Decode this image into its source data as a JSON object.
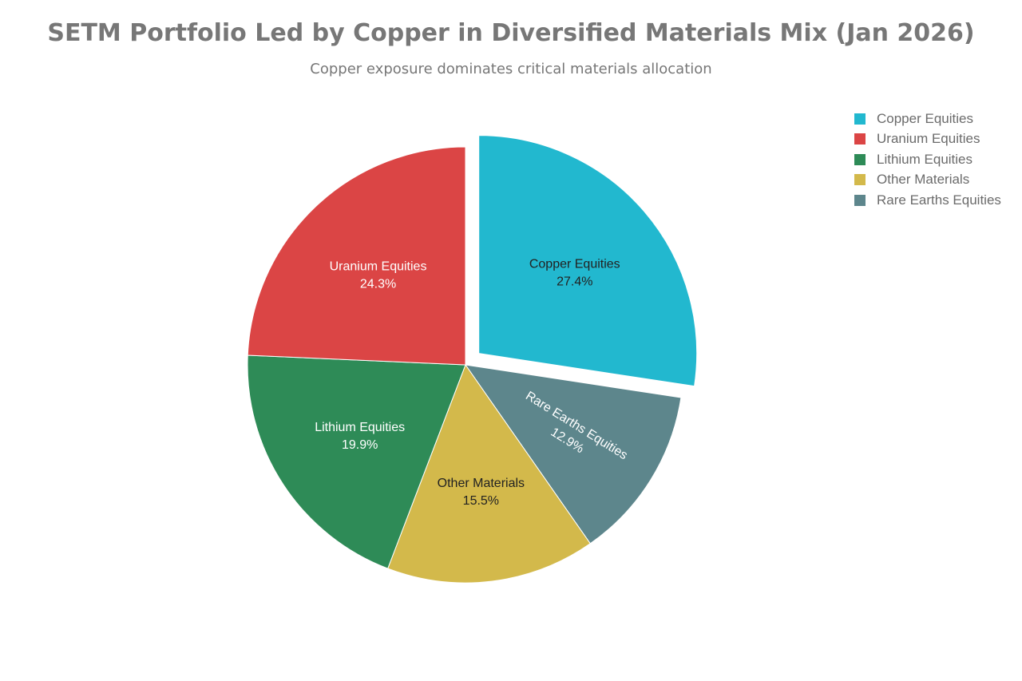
{
  "chart_data": {
    "type": "pie",
    "title": "SETM Portfolio Led by Copper in Diversified Materials Mix (Jan 2026)",
    "subtitle": "Copper exposure dominates critical materials allocation",
    "legend_position": "top-right",
    "slices": [
      {
        "label": "Copper Equities",
        "value": 27.4,
        "value_label": "27.4%",
        "color": "#22b8cf",
        "text_color": "#222222",
        "pulled": true
      },
      {
        "label": "Rare Earths Equities",
        "value": 12.9,
        "value_label": "12.9%",
        "color": "#5d868c",
        "text_color": "#ffffff",
        "pulled": false
      },
      {
        "label": "Other Materials",
        "value": 15.5,
        "value_label": "15.5%",
        "color": "#d3b94b",
        "text_color": "#222222",
        "pulled": false
      },
      {
        "label": "Lithium Equities",
        "value": 19.9,
        "value_label": "19.9%",
        "color": "#2e8b57",
        "text_color": "#ffffff",
        "pulled": false
      },
      {
        "label": "Uranium Equities",
        "value": 24.3,
        "value_label": "24.3%",
        "color": "#db4545",
        "text_color": "#ffffff",
        "pulled": false
      }
    ],
    "legend": [
      {
        "label": "Copper Equities",
        "color": "#22b8cf"
      },
      {
        "label": "Uranium Equities",
        "color": "#db4545"
      },
      {
        "label": "Lithium Equities",
        "color": "#2e8b57"
      },
      {
        "label": "Other Materials",
        "color": "#d3b94b"
      },
      {
        "label": "Rare Earths Equities",
        "color": "#5d868c"
      }
    ]
  }
}
